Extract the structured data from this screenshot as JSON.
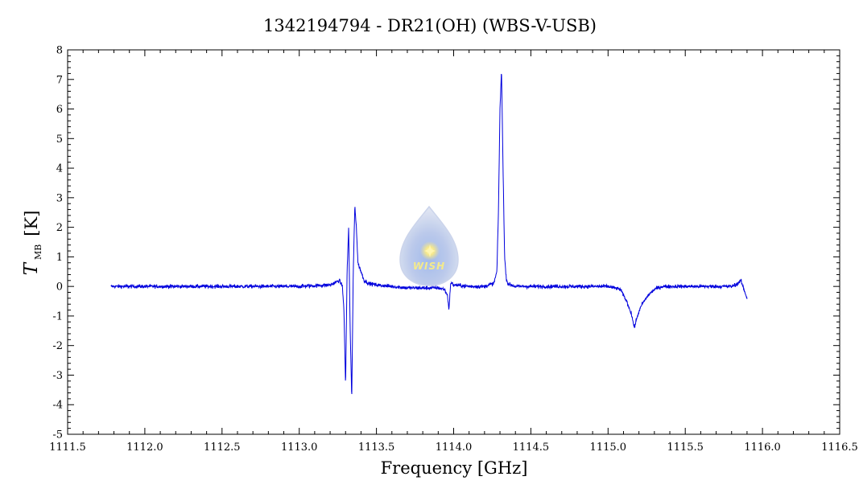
{
  "chart_data": {
    "type": "line",
    "title": "1342194794 - DR21(OH) (WBS-V-USB)",
    "xlabel": "Frequency [GHz]",
    "ylabel": {
      "symbol": "T",
      "subscript": "MB",
      "unit": "[K]"
    },
    "xlim": [
      1111.5,
      1116.5
    ],
    "ylim": [
      -5,
      8
    ],
    "xticks": [
      1111.5,
      1112.0,
      1112.5,
      1113.0,
      1113.5,
      1114.0,
      1114.5,
      1115.0,
      1115.5,
      1116.0,
      1116.5
    ],
    "xtick_labels": [
      "1111.5",
      "1112.0",
      "1112.5",
      "1113.0",
      "1113.5",
      "1114.0",
      "1114.5",
      "1115.0",
      "1115.5",
      "1116.0",
      "1116.5"
    ],
    "yticks": [
      -5,
      -4,
      -3,
      -2,
      -1,
      0,
      1,
      2,
      3,
      4,
      5,
      6,
      7,
      8
    ],
    "ytick_labels": [
      "-5",
      "-4",
      "-3",
      "-2",
      "-1",
      "0",
      "1",
      "2",
      "3",
      "4",
      "5",
      "6",
      "7",
      "8"
    ],
    "grid": false,
    "series": [
      {
        "color": "#0000dd",
        "x": [
          1111.78,
          1112.0,
          1112.5,
          1113.0,
          1113.2,
          1113.26,
          1113.28,
          1113.29,
          1113.3,
          1113.31,
          1113.32,
          1113.33,
          1113.34,
          1113.35,
          1113.36,
          1113.37,
          1113.38,
          1113.4,
          1113.42,
          1113.45,
          1113.5,
          1113.6,
          1113.7,
          1113.8,
          1113.9,
          1113.94,
          1113.96,
          1113.97,
          1113.98,
          1113.99,
          1114.0,
          1114.1,
          1114.2,
          1114.26,
          1114.28,
          1114.29,
          1114.3,
          1114.31,
          1114.32,
          1114.33,
          1114.34,
          1114.35,
          1114.37,
          1114.4,
          1114.5,
          1114.8,
          1115.0,
          1115.08,
          1115.12,
          1115.15,
          1115.17,
          1115.19,
          1115.22,
          1115.26,
          1115.3,
          1115.35,
          1115.4,
          1115.5,
          1115.6,
          1115.7,
          1115.8,
          1115.84,
          1115.86,
          1115.88,
          1115.9
        ],
        "y": [
          0.0,
          0.0,
          0.0,
          0.0,
          0.05,
          0.2,
          0.0,
          -0.9,
          -3.4,
          0.5,
          2.0,
          -1.5,
          -3.8,
          0.5,
          2.75,
          2.0,
          0.8,
          0.5,
          0.2,
          0.1,
          0.05,
          0.0,
          -0.05,
          -0.05,
          -0.05,
          -0.1,
          -0.3,
          -0.8,
          0.1,
          0.1,
          0.05,
          0.0,
          0.0,
          0.1,
          0.5,
          2.5,
          6.0,
          7.3,
          4.0,
          1.0,
          0.3,
          0.1,
          0.05,
          0.0,
          0.0,
          0.0,
          0.0,
          -0.1,
          -0.5,
          -0.9,
          -1.4,
          -1.0,
          -0.6,
          -0.3,
          -0.1,
          0.0,
          0.0,
          0.0,
          0.0,
          0.0,
          0.0,
          0.1,
          0.2,
          -0.1,
          -0.4
        ]
      }
    ]
  },
  "logo": {
    "text": "WISH"
  }
}
